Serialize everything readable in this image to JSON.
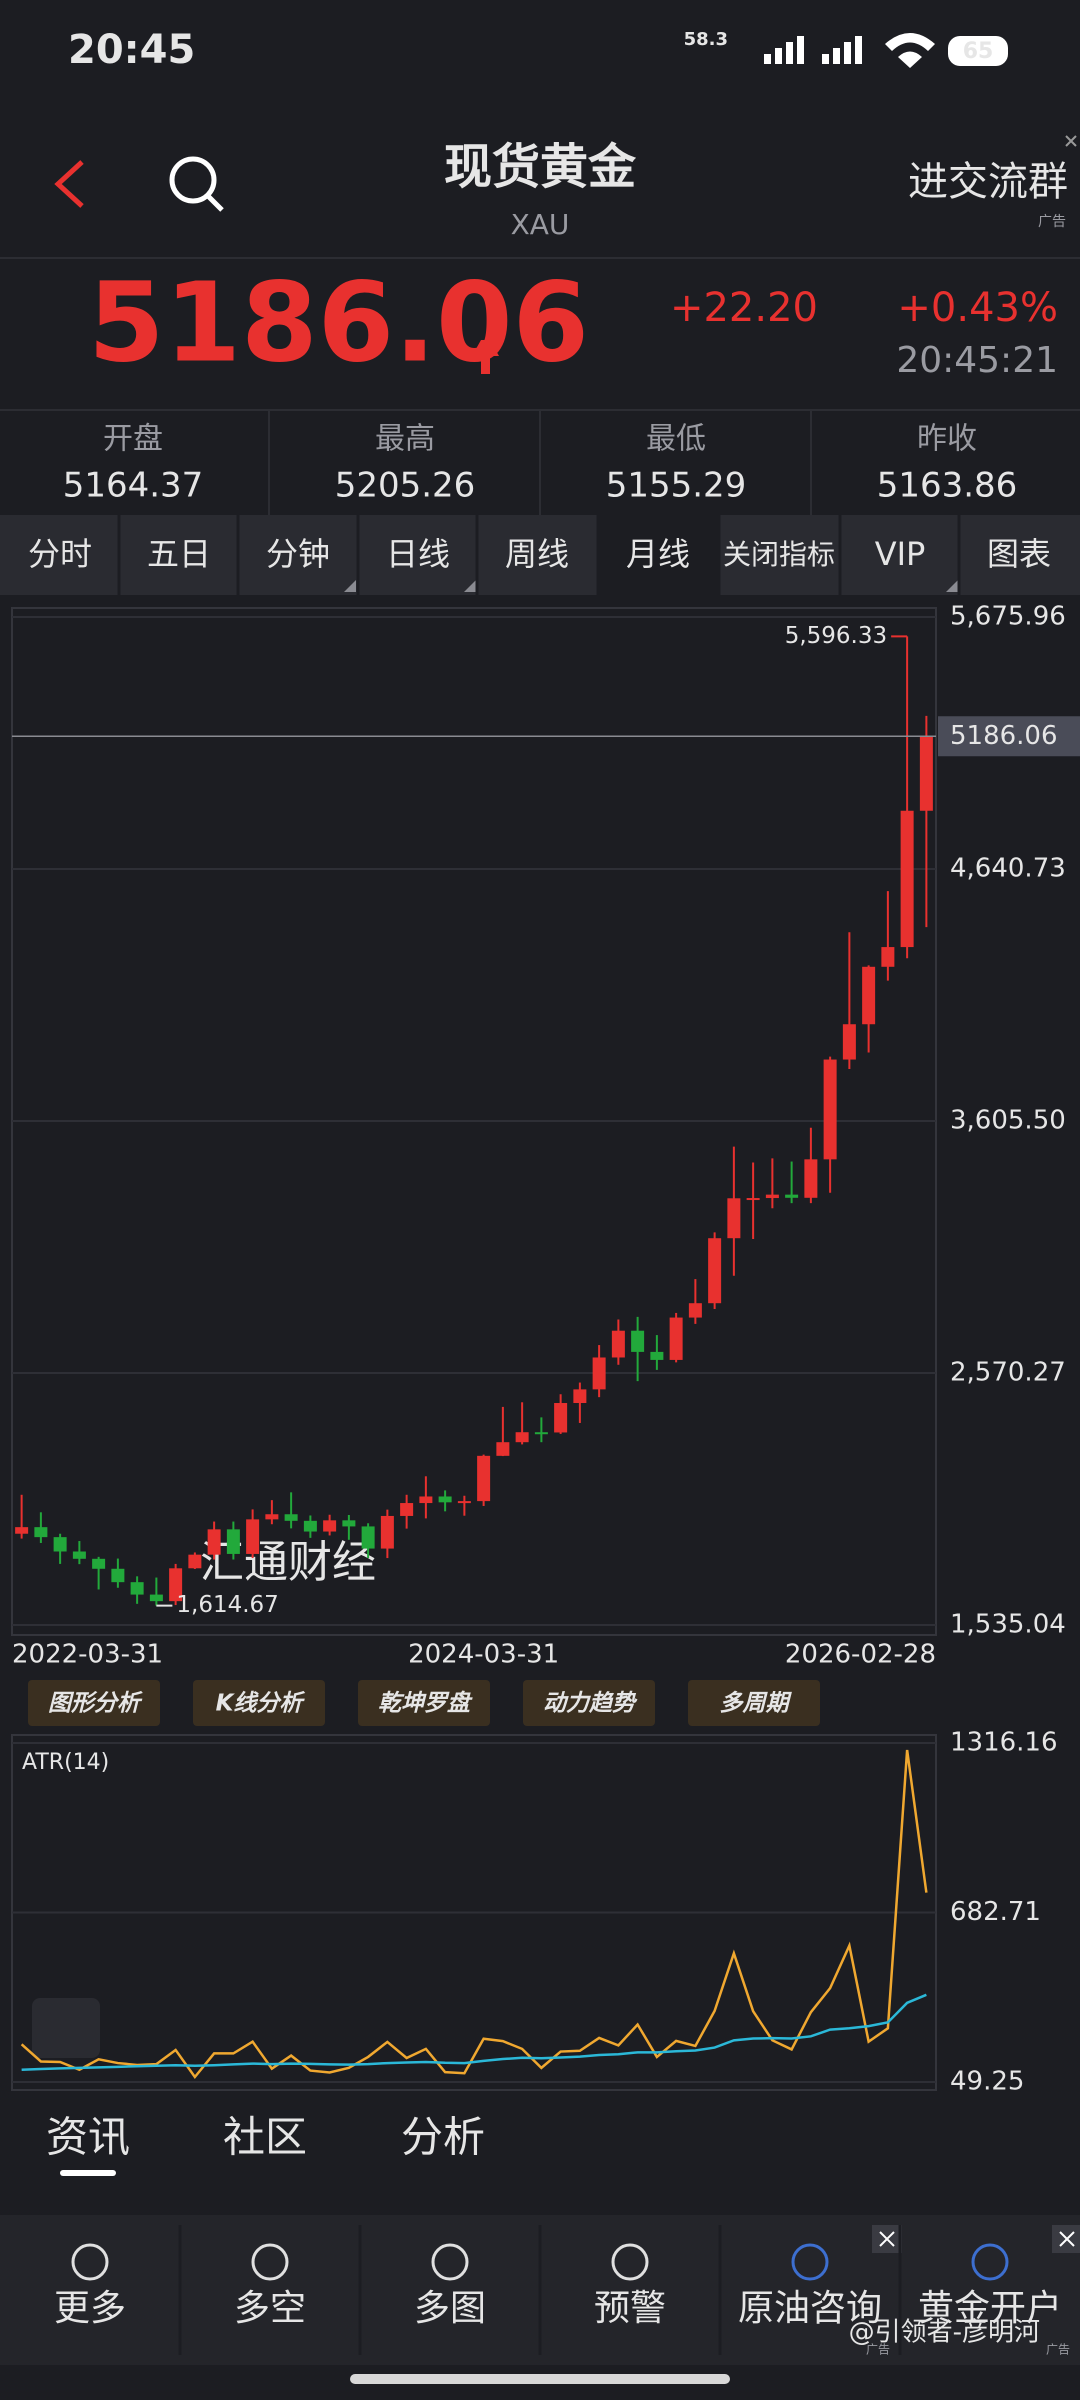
{
  "status": {
    "time": "20:45",
    "network": "58.3",
    "battery": "65"
  },
  "header": {
    "title": "现货黄金",
    "subtitle": "XAU",
    "group": "进交流群",
    "ad": "广告"
  },
  "quote": {
    "price": "5186.06",
    "change": "+22.20",
    "change_pct": "+0.43%",
    "time": "20:45:21"
  },
  "stats": [
    {
      "label": "开盘",
      "value": "5164.37"
    },
    {
      "label": "最高",
      "value": "5205.26"
    },
    {
      "label": "最低",
      "value": "5155.29"
    },
    {
      "label": "昨收",
      "value": "5163.86"
    }
  ],
  "tabs": [
    "分时",
    "五日",
    "分钟",
    "日线",
    "周线",
    "月线",
    "关闭指标",
    "VIP",
    "图表"
  ],
  "tools": [
    "图形分析",
    "K线分析",
    "乾坤罗盘",
    "动力趋势",
    "多周期"
  ],
  "section_tabs": [
    "资讯",
    "社区",
    "分析"
  ],
  "nav": [
    {
      "label": "更多"
    },
    {
      "label": "多空"
    },
    {
      "label": "多图"
    },
    {
      "label": "预警"
    },
    {
      "label": "原油咨询",
      "ad": "广告"
    },
    {
      "label": "黄金开户",
      "ad": "广告"
    }
  ],
  "watermark": "汇通财经",
  "credit": "@引领者-彦明河",
  "chart_data": [
    {
      "type": "candlestick",
      "categories": [
        "2022-03-31",
        null,
        null,
        null,
        null,
        null,
        null,
        null,
        null,
        null,
        null,
        null,
        null,
        null,
        null,
        null,
        null,
        null,
        null,
        null,
        null,
        null,
        null,
        null,
        "2024-03-31",
        null,
        null,
        null,
        null,
        null,
        null,
        null,
        null,
        null,
        null,
        null,
        null,
        null,
        null,
        null,
        null,
        null,
        null,
        null,
        null,
        null,
        null,
        "2026-02-28"
      ],
      "open": [
        1910,
        1937,
        1896,
        1837,
        1807,
        1766,
        1711,
        1660,
        1633,
        1768,
        1824,
        1928,
        1827,
        1969,
        1990,
        1963,
        1919,
        1965,
        1940,
        1849,
        1983,
        2036,
        2063,
        2039,
        2044,
        2230,
        2286,
        2327,
        2326,
        2447,
        2503,
        2634,
        2744,
        2657,
        2624,
        2798,
        2857,
        3124,
        3288,
        3289,
        3303,
        3290,
        3448,
        3858,
        4003,
        4239,
        4320,
        4880
      ],
      "high": [
        2070,
        1998,
        1910,
        1880,
        1815,
        1808,
        1735,
        1730,
        1786,
        1833,
        1960,
        1960,
        2010,
        2048,
        2080,
        1985,
        1988,
        1987,
        1953,
        2009,
        2070,
        2146,
        2088,
        2066,
        2235,
        2431,
        2450,
        2388,
        2483,
        2531,
        2685,
        2790,
        2801,
        2726,
        2817,
        2956,
        3148,
        3500,
        3435,
        3452,
        3439,
        3578,
        3870,
        4381,
        4245,
        4550,
        5596.33,
        5270
      ],
      "low": [
        1890,
        1872,
        1786,
        1785,
        1681,
        1688,
        1622,
        1614.67,
        1617,
        1765,
        1804,
        1804,
        1810,
        1949,
        1932,
        1893,
        1903,
        1885,
        1810,
        1810,
        1931,
        1973,
        2002,
        1984,
        2024,
        2229,
        2277,
        2286,
        2320,
        2365,
        2471,
        2604,
        2537,
        2583,
        2614,
        2772,
        2833,
        2970,
        3121,
        3247,
        3268,
        3268,
        3311,
        3819,
        3887,
        4182,
        4274,
        4402
      ],
      "close": [
        1937,
        1896,
        1837,
        1807,
        1766,
        1711,
        1660,
        1633,
        1768,
        1824,
        1928,
        1827,
        1969,
        1990,
        1963,
        1919,
        1965,
        1940,
        1849,
        1983,
        2036,
        2063,
        2039,
        2044,
        2230,
        2286,
        2327,
        2326,
        2447,
        2503,
        2634,
        2744,
        2657,
        2624,
        2798,
        2857,
        3124,
        3288,
        3289,
        3303,
        3290,
        3448,
        3858,
        4003,
        4239,
        4320,
        4880,
        5186.06
      ],
      "up_color": "#e8312f",
      "down_color": "#22a93b",
      "ylim": [
        1535.04,
        5675.96
      ],
      "yticks": [
        {
          "value": 1535.04,
          "label": "1,535.04"
        },
        {
          "value": 2570.27,
          "label": "2,570.27"
        },
        {
          "value": 3605.5,
          "label": "3,605.50"
        },
        {
          "value": 4640.73,
          "label": "4,640.73"
        },
        {
          "value": 5675.96,
          "label": "5,675.96"
        }
      ],
      "grid": true,
      "last_price": 5186.06,
      "high_label": {
        "value": 5596.33,
        "label": "5,596.33"
      },
      "low_label": {
        "value": 1614.67,
        "label": "1,614.67"
      }
    },
    {
      "type": "line",
      "title": "ATR(14)",
      "series": [
        {
          "color": "#f0a830",
          "values": [
            190,
            126,
            124,
            95,
            134,
            120,
            113,
            116,
            169,
            68,
            156,
            156,
            200,
            99,
            148,
            92,
            85,
            102,
            143,
            199,
            139,
            173,
            86,
            82,
            211,
            202,
            173,
            102,
            163,
            166,
            214,
            186,
            264,
            143,
            203,
            184,
            315,
            530,
            314,
            205,
            171,
            310,
            400,
            559,
            200,
            250,
            1290,
            757
          ]
        },
        {
          "color": "#2bb8d8",
          "values": [
            95,
            98,
            100,
            102,
            104,
            106,
            108,
            110,
            112,
            110,
            112,
            115,
            118,
            116,
            118,
            117,
            115,
            114,
            116,
            120,
            122,
            124,
            121,
            120,
            128,
            135,
            140,
            138,
            141,
            144,
            150,
            153,
            160,
            160,
            164,
            167,
            178,
            205,
            212,
            213,
            212,
            220,
            245,
            250,
            258,
            272,
            345,
            375
          ]
        }
      ],
      "ylim": [
        49.25,
        1316.16
      ],
      "yticks": [
        49.25,
        682.71,
        1316.16
      ],
      "grid": true
    }
  ]
}
